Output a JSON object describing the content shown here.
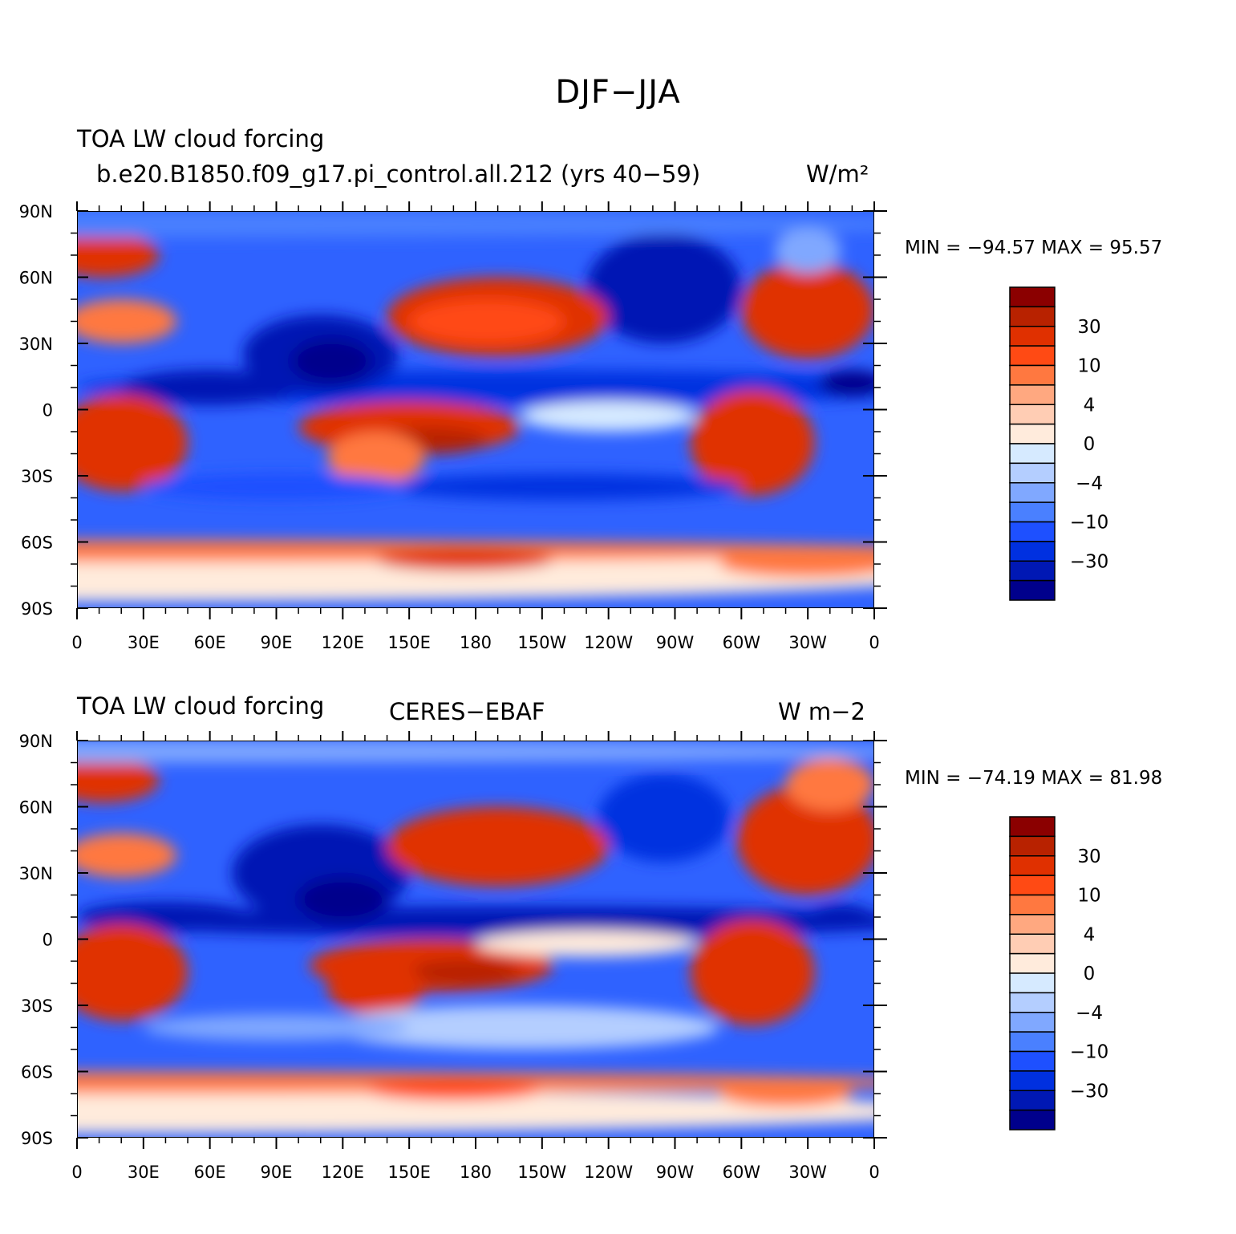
{
  "title": "DJF−JJA",
  "palette": [
    "#00008c",
    "#0018b4",
    "#0030e0",
    "#1e50ff",
    "#4a80ff",
    "#80a8ff",
    "#b4ceff",
    "#d6eaff",
    "#ffebdc",
    "#ffcdb4",
    "#ffa880",
    "#ff7840",
    "#ff4a14",
    "#e03000",
    "#b82200",
    "#8b0000"
  ],
  "colorbar_labels": [
    "30",
    "10",
    "4",
    "0",
    "−4",
    "−10",
    "−30"
  ],
  "lat_labels": [
    "90N",
    "60N",
    "30N",
    "0",
    "30S",
    "60S",
    "90S"
  ],
  "lon_labels": [
    "0",
    "30E",
    "60E",
    "90E",
    "120E",
    "150E",
    "180",
    "150W",
    "120W",
    "90W",
    "60W",
    "30W",
    "0"
  ],
  "panels": [
    {
      "left_title": "TOA LW cloud forcing",
      "center_title": "b.e20.B1850.f09_g17.pi_control.all.212 (yrs 40−59)",
      "units": "W/m²",
      "min_max": "MIN = −94.57  MAX =   95.57"
    },
    {
      "left_title": "TOA LW cloud forcing",
      "center_title": "CERES−EBAF",
      "units": "W m−2",
      "min_max": "MIN = −74.19  MAX =   81.98"
    }
  ]
}
